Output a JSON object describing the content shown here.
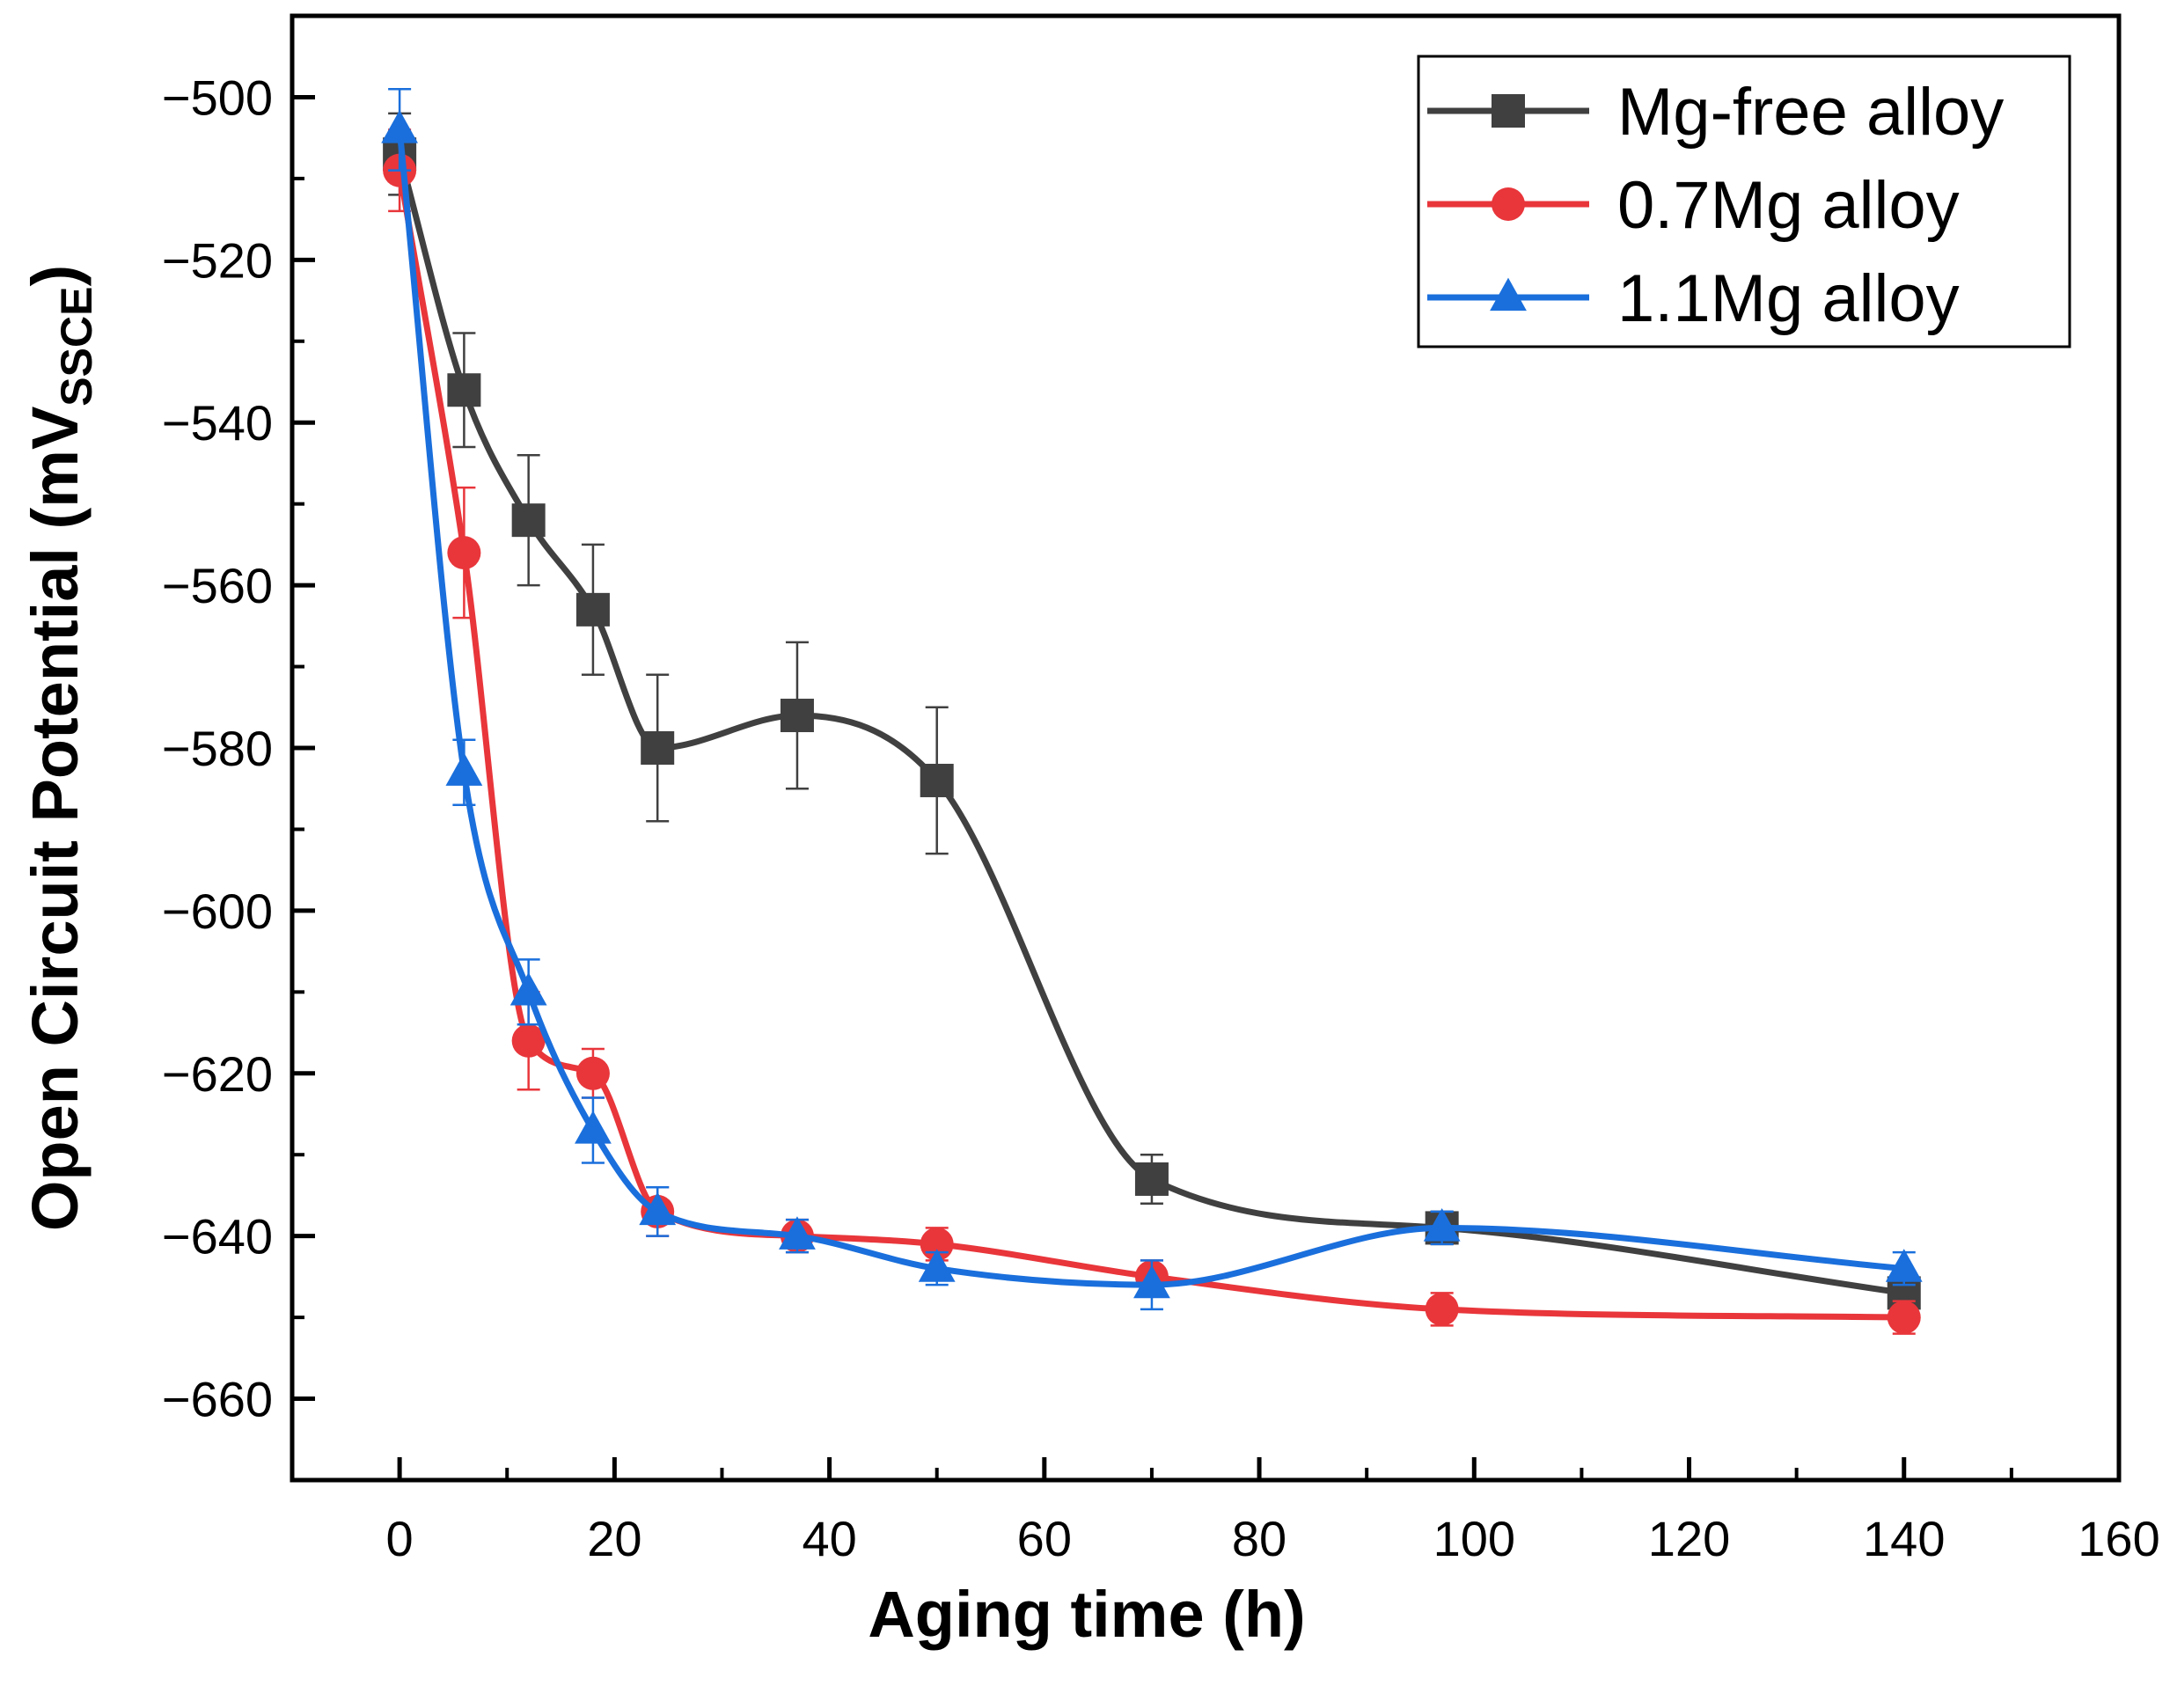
{
  "chart_data": {
    "type": "line",
    "title": "",
    "xlabel": "Aging time (h)",
    "ylabel_main": "Open Circuit Potential (mV",
    "ylabel_sub": "SSCE",
    "ylabel_end": ")",
    "xlim": [
      -10,
      160
    ],
    "ylim": [
      -670,
      -490
    ],
    "xticks": [
      0,
      20,
      40,
      60,
      80,
      100,
      120,
      140,
      160
    ],
    "xtick_labels": [
      "0",
      "20",
      "40",
      "60",
      "80",
      "100",
      "120",
      "140",
      "160"
    ],
    "yticks": [
      -500,
      -520,
      -540,
      -560,
      -580,
      -600,
      -620,
      -640,
      -660
    ],
    "ytick_labels": [
      "−500",
      "−520",
      "−540",
      "−560",
      "−580",
      "−600",
      "−620",
      "−640",
      "−660"
    ],
    "legend_position": "top-right",
    "series": [
      {
        "name": "Mg-free alloy",
        "color": "#404040",
        "marker": "square",
        "x": [
          0,
          6,
          12,
          18,
          24,
          37,
          50,
          70,
          97,
          140
        ],
        "y": [
          -507,
          -536,
          -552,
          -563,
          -580,
          -576,
          -584,
          -633,
          -639,
          -647
        ],
        "err": [
          5,
          7,
          8,
          8,
          9,
          9,
          9,
          3,
          2,
          2
        ]
      },
      {
        "name": "0.7Mg alloy",
        "color": "#e8363b",
        "marker": "circle",
        "x": [
          0,
          6,
          12,
          18,
          24,
          37,
          50,
          70,
          97,
          140
        ],
        "y": [
          -509,
          -556,
          -616,
          -620,
          -637,
          -640,
          -641,
          -645,
          -649,
          -650
        ],
        "err": [
          5,
          8,
          6,
          3,
          3,
          2,
          2,
          2,
          2,
          2
        ]
      },
      {
        "name": "1.1Mg alloy",
        "color": "#1a6fdc",
        "marker": "triangle",
        "x": [
          0,
          6,
          12,
          18,
          24,
          37,
          50,
          70,
          97,
          140
        ],
        "y": [
          -504,
          -583,
          -610,
          -627,
          -637,
          -640,
          -644,
          -646,
          -639,
          -644
        ],
        "err": [
          5,
          4,
          4,
          4,
          3,
          2,
          2,
          3,
          2,
          2
        ]
      }
    ]
  }
}
